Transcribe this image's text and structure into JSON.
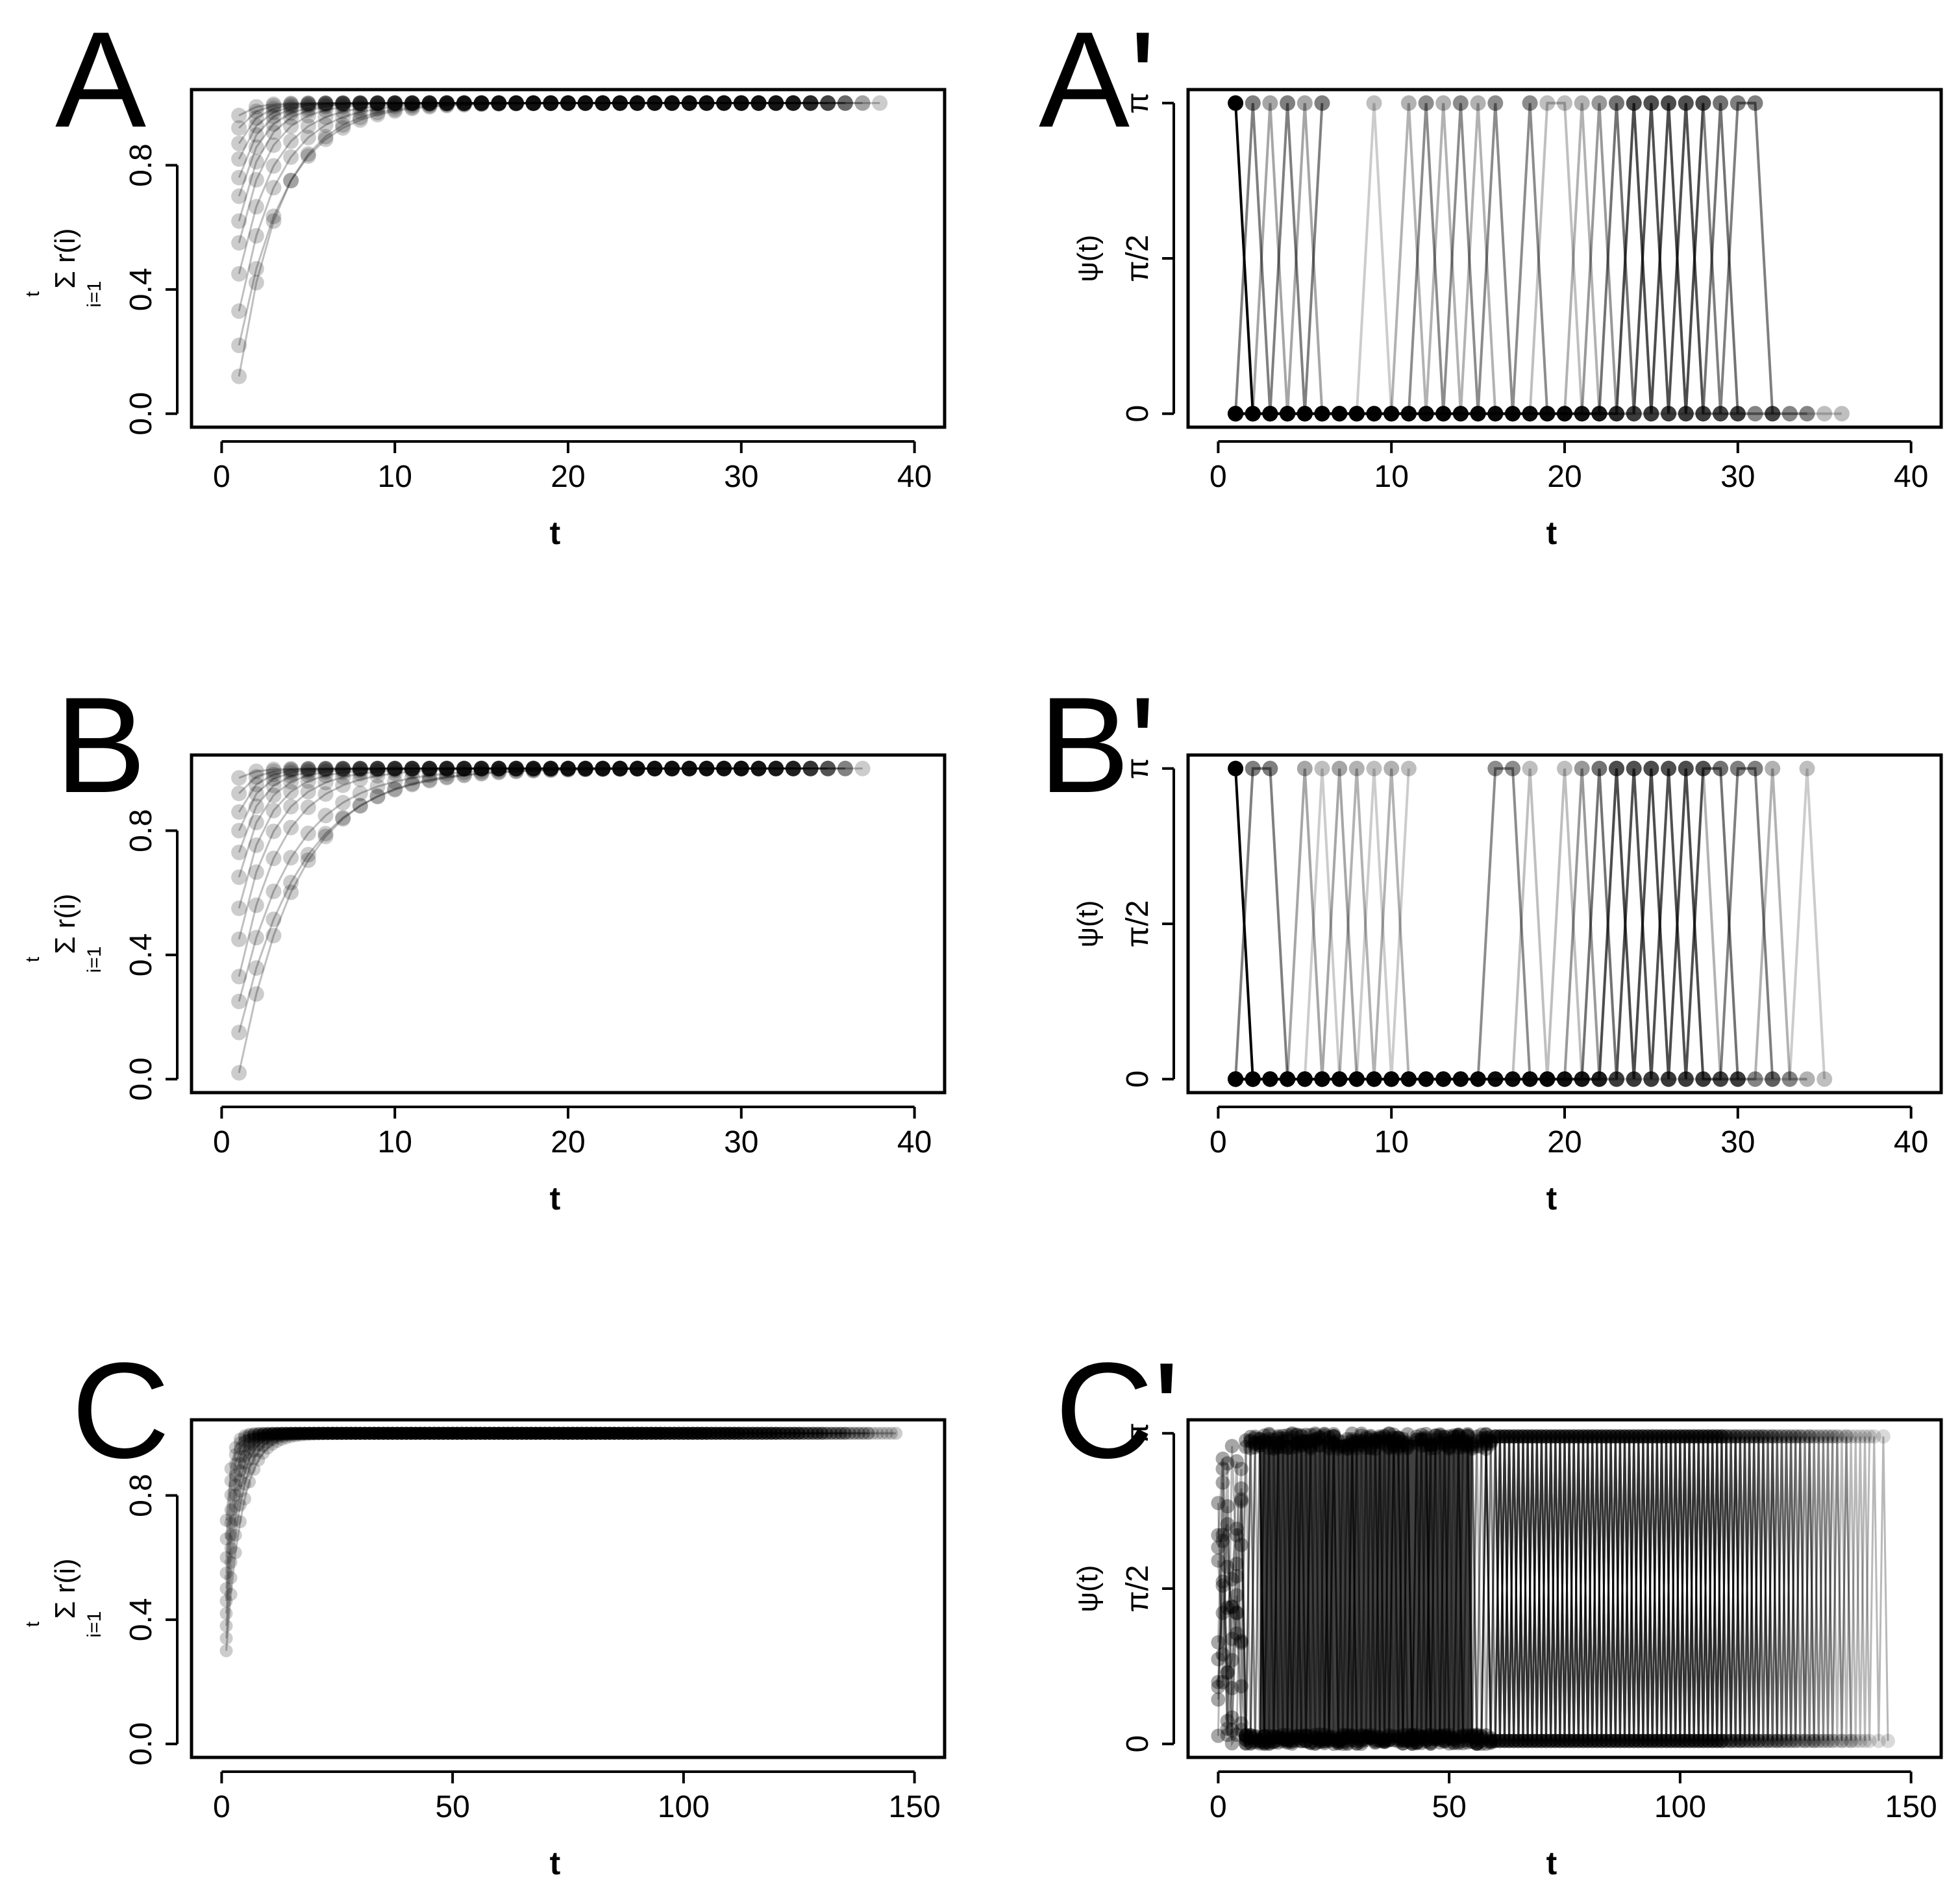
{
  "chart_data": [
    {
      "id": "A",
      "panel_label": "A",
      "type": "scatter",
      "kind": "cumsum",
      "xlim": [
        0,
        40
      ],
      "ylim": [
        0,
        1
      ],
      "x_ticks": [
        0,
        10,
        20,
        30,
        40
      ],
      "x_tick_labels": [
        "0",
        "10",
        "20",
        "30",
        "40"
      ],
      "y_ticks": [
        0,
        0.4,
        0.8
      ],
      "y_tick_labels": [
        "0.0",
        "0.4",
        "0.8"
      ],
      "xlabel": "t",
      "ylabel": "Σ r(i)",
      "ylabel_sup": "t",
      "ylabel_sub": "i=1",
      "series": [
        {
          "start": 0.12,
          "rate": 0.42,
          "t_max": 38
        },
        {
          "start": 0.22,
          "rate": 0.38,
          "t_max": 36
        },
        {
          "start": 0.33,
          "rate": 0.45,
          "t_max": 37
        },
        {
          "start": 0.45,
          "rate": 0.5,
          "t_max": 35
        },
        {
          "start": 0.55,
          "rate": 0.6,
          "t_max": 36
        },
        {
          "start": 0.62,
          "rate": 0.7,
          "t_max": 34
        },
        {
          "start": 0.7,
          "rate": 0.75,
          "t_max": 35
        },
        {
          "start": 0.76,
          "rate": 0.85,
          "t_max": 33
        },
        {
          "start": 0.82,
          "rate": 0.9,
          "t_max": 34
        },
        {
          "start": 0.87,
          "rate": 1.0,
          "t_max": 32
        },
        {
          "start": 0.92,
          "rate": 1.1,
          "t_max": 33
        },
        {
          "start": 0.96,
          "rate": 1.2,
          "t_max": 31
        }
      ]
    },
    {
      "id": "A_prime",
      "panel_label": "A'",
      "type": "line",
      "kind": "psi",
      "xlim": [
        0,
        40
      ],
      "ylim": [
        0,
        3.1416
      ],
      "x_ticks": [
        0,
        10,
        20,
        30,
        40
      ],
      "x_tick_labels": [
        "0",
        "10",
        "20",
        "30",
        "40"
      ],
      "y_ticks": [
        0,
        1.5708,
        3.1416
      ],
      "y_tick_labels": [
        "0",
        "π/2",
        "π"
      ],
      "xlabel": "t",
      "ylabel": "ψ(t)",
      "series": [
        {
          "start": 1,
          "t_max": 2,
          "pi_at": [
            1
          ]
        },
        {
          "start": 1,
          "t_max": 6,
          "pi_at": [
            2,
            4,
            6
          ]
        },
        {
          "start": 1,
          "t_max": 8,
          "pi_at": [
            3,
            5
          ]
        },
        {
          "start": 1,
          "t_max": 10,
          "pi_at": [
            9
          ]
        },
        {
          "start": 1,
          "t_max": 16,
          "pi_at": [
            11,
            13,
            15
          ]
        },
        {
          "start": 1,
          "t_max": 20,
          "pi_at": [
            12,
            14,
            16,
            18
          ]
        },
        {
          "start": 1,
          "t_max": 22,
          "pi_at": [
            19,
            20
          ]
        },
        {
          "start": 1,
          "t_max": 28,
          "pi_at": [
            22,
            24,
            26,
            28
          ]
        },
        {
          "start": 1,
          "t_max": 30,
          "pi_at": [
            23,
            25,
            27,
            29
          ]
        },
        {
          "start": 1,
          "t_max": 32,
          "pi_at": [
            24,
            26,
            28,
            30,
            31
          ]
        },
        {
          "start": 1,
          "t_max": 34,
          "pi_at": [
            21,
            25,
            27
          ]
        },
        {
          "start": 1,
          "t_max": 36,
          "pi_at": []
        }
      ]
    },
    {
      "id": "B",
      "panel_label": "B",
      "type": "scatter",
      "kind": "cumsum",
      "xlim": [
        0,
        40
      ],
      "ylim": [
        0,
        1
      ],
      "x_ticks": [
        0,
        10,
        20,
        30,
        40
      ],
      "x_tick_labels": [
        "0",
        "10",
        "20",
        "30",
        "40"
      ],
      "y_ticks": [
        0,
        0.4,
        0.8
      ],
      "y_tick_labels": [
        "0.0",
        "0.4",
        "0.8"
      ],
      "xlabel": "t",
      "ylabel": "Σ r(i)",
      "ylabel_sup": "t",
      "ylabel_sub": "i=1",
      "series": [
        {
          "start": 0.02,
          "rate": 0.3,
          "t_max": 37
        },
        {
          "start": 0.15,
          "rate": 0.28,
          "t_max": 36
        },
        {
          "start": 0.25,
          "rate": 0.32,
          "t_max": 35
        },
        {
          "start": 0.33,
          "rate": 0.42,
          "t_max": 36
        },
        {
          "start": 0.45,
          "rate": 0.5,
          "t_max": 34
        },
        {
          "start": 0.55,
          "rate": 0.6,
          "t_max": 35
        },
        {
          "start": 0.65,
          "rate": 0.7,
          "t_max": 33
        },
        {
          "start": 0.73,
          "rate": 0.8,
          "t_max": 34
        },
        {
          "start": 0.8,
          "rate": 0.9,
          "t_max": 32
        },
        {
          "start": 0.86,
          "rate": 1.0,
          "t_max": 33
        },
        {
          "start": 0.92,
          "rate": 1.1,
          "t_max": 31
        },
        {
          "start": 0.97,
          "rate": 1.2,
          "t_max": 30
        }
      ]
    },
    {
      "id": "B_prime",
      "panel_label": "B'",
      "type": "line",
      "kind": "psi",
      "xlim": [
        0,
        40
      ],
      "ylim": [
        0,
        3.1416
      ],
      "x_ticks": [
        0,
        10,
        20,
        30,
        40
      ],
      "x_tick_labels": [
        "0",
        "10",
        "20",
        "30",
        "40"
      ],
      "y_ticks": [
        0,
        1.5708,
        3.1416
      ],
      "y_tick_labels": [
        "0",
        "π/2",
        "π"
      ],
      "xlabel": "t",
      "ylabel": "ψ(t)",
      "series": [
        {
          "start": 1,
          "t_max": 2,
          "pi_at": [
            1
          ]
        },
        {
          "start": 1,
          "t_max": 4,
          "pi_at": [
            2,
            3
          ]
        },
        {
          "start": 1,
          "t_max": 8,
          "pi_at": [
            5,
            7
          ]
        },
        {
          "start": 1,
          "t_max": 11,
          "pi_at": [
            6,
            9,
            11
          ]
        },
        {
          "start": 1,
          "t_max": 12,
          "pi_at": [
            8,
            10
          ]
        },
        {
          "start": 1,
          "t_max": 19,
          "pi_at": [
            16,
            17
          ]
        },
        {
          "start": 1,
          "t_max": 22,
          "pi_at": [
            18,
            20
          ]
        },
        {
          "start": 1,
          "t_max": 28,
          "pi_at": [
            21,
            23,
            25,
            27
          ]
        },
        {
          "start": 1,
          "t_max": 30,
          "pi_at": [
            22,
            24,
            26,
            28,
            29
          ]
        },
        {
          "start": 1,
          "t_max": 32,
          "pi_at": [
            23,
            25,
            27,
            30,
            31
          ]
        },
        {
          "start": 1,
          "t_max": 34,
          "pi_at": [
            24,
            26,
            28,
            32
          ]
        },
        {
          "start": 1,
          "t_max": 35,
          "pi_at": [
            34
          ]
        }
      ]
    },
    {
      "id": "C",
      "panel_label": "C",
      "type": "scatter",
      "kind": "cumsum",
      "xlim": [
        0,
        150
      ],
      "ylim": [
        0,
        1
      ],
      "x_ticks": [
        0,
        50,
        100,
        150
      ],
      "x_tick_labels": [
        "0",
        "50",
        "100",
        "150"
      ],
      "y_ticks": [
        0,
        0.4,
        0.8
      ],
      "y_tick_labels": [
        "0.0",
        "0.4",
        "0.8"
      ],
      "xlabel": "t",
      "ylabel": "Σ r(i)",
      "ylabel_sup": "t",
      "ylabel_sub": "i=1",
      "series": [
        {
          "start": 0.3,
          "rate": 0.3,
          "t_max": 146
        },
        {
          "start": 0.34,
          "rate": 0.35,
          "t_max": 140
        },
        {
          "start": 0.38,
          "rate": 0.4,
          "t_max": 135
        },
        {
          "start": 0.42,
          "rate": 0.45,
          "t_max": 130
        },
        {
          "start": 0.46,
          "rate": 0.5,
          "t_max": 125
        },
        {
          "start": 0.5,
          "rate": 0.55,
          "t_max": 120
        },
        {
          "start": 0.55,
          "rate": 0.6,
          "t_max": 112
        },
        {
          "start": 0.6,
          "rate": 0.7,
          "t_max": 105
        },
        {
          "start": 0.66,
          "rate": 0.8,
          "t_max": 95
        },
        {
          "start": 0.72,
          "rate": 0.9,
          "t_max": 85
        }
      ]
    },
    {
      "id": "C_prime",
      "panel_label": "C'",
      "type": "line",
      "kind": "psi_dense",
      "xlim": [
        0,
        150
      ],
      "ylim": [
        0,
        3.1416
      ],
      "x_ticks": [
        0,
        50,
        100,
        150
      ],
      "x_tick_labels": [
        "0",
        "50",
        "100",
        "150"
      ],
      "y_ticks": [
        0,
        1.5708,
        3.1416
      ],
      "y_tick_labels": [
        "0",
        "π/2",
        "π"
      ],
      "xlabel": "t",
      "ylabel": "ψ(t)",
      "series_count": 10,
      "t_max": 145,
      "dense_until": 60,
      "fade_until": 110
    }
  ],
  "colors": {
    "point": "#000000",
    "frame": "#000000",
    "background": "#ffffff"
  }
}
